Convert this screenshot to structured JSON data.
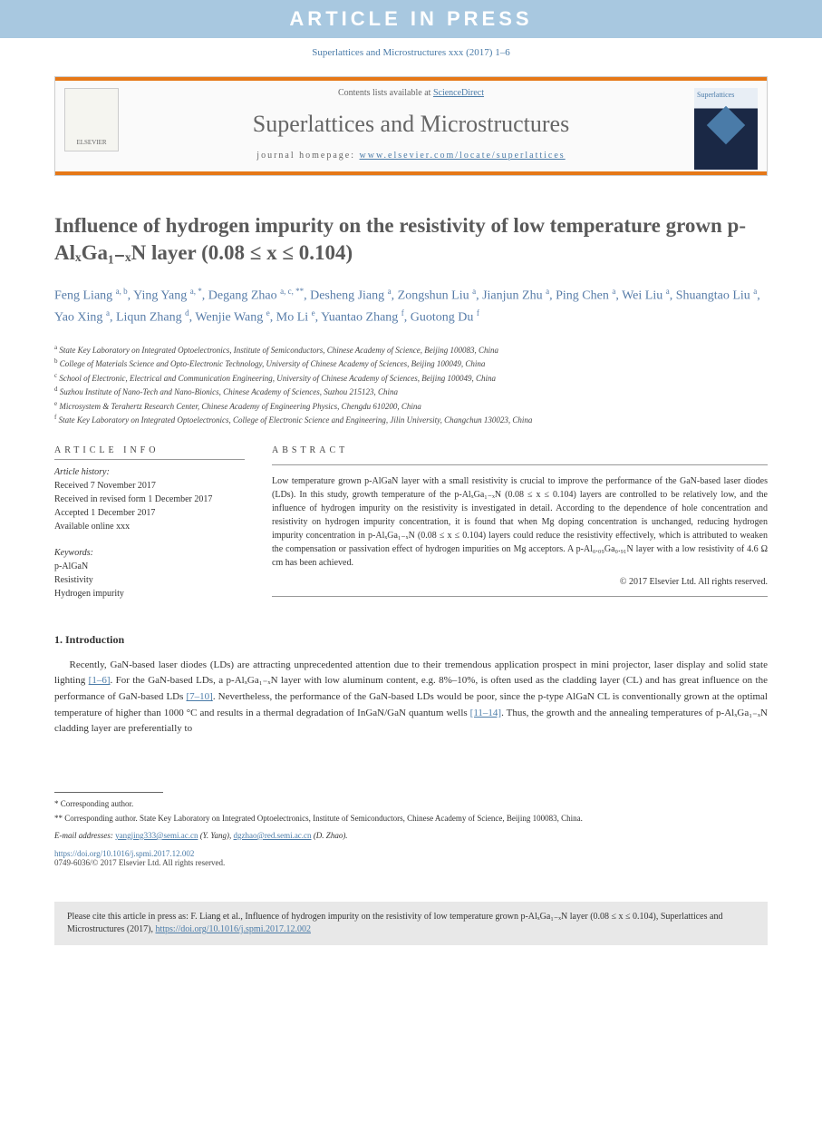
{
  "banner": "ARTICLE IN PRESS",
  "citation_header": "Superlattices and Microstructures xxx (2017) 1–6",
  "journal_box": {
    "contents_prefix": "Contents lists available at ",
    "contents_link": "ScienceDirect",
    "journal_name": "Superlattices and Microstructures",
    "homepage_prefix": "journal homepage: ",
    "homepage_url": "www.elsevier.com/locate/superlattices",
    "elsevier_label": "ELSEVIER",
    "cover_label": "Superlattices"
  },
  "title": "Influence of hydrogen impurity on the resistivity of low temperature grown p-AlₓGa₁₋ₓN layer (0.08 ≤ x ≤ 0.104)",
  "authors_html": "Feng Liang <sup>a, b</sup>, Ying Yang <sup>a, *</sup>, Degang Zhao <sup>a, c, **</sup>, Desheng Jiang <sup>a</sup>, Zongshun Liu <sup>a</sup>, Jianjun Zhu <sup>a</sup>, Ping Chen <sup>a</sup>, Wei Liu <sup>a</sup>, Shuangtao Liu <sup>a</sup>, Yao Xing <sup>a</sup>, Liqun Zhang <sup>d</sup>, Wenjie Wang <sup>e</sup>, Mo Li <sup>e</sup>, Yuantao Zhang <sup>f</sup>, Guotong Du <sup>f</sup>",
  "affiliations": [
    {
      "sup": "a",
      "text": "State Key Laboratory on Integrated Optoelectronics, Institute of Semiconductors, Chinese Academy of Science, Beijing 100083, China"
    },
    {
      "sup": "b",
      "text": "College of Materials Science and Opto-Electronic Technology, University of Chinese Academy of Sciences, Beijing 100049, China"
    },
    {
      "sup": "c",
      "text": "School of Electronic, Electrical and Communication Engineering, University of Chinese Academy of Sciences, Beijing 100049, China"
    },
    {
      "sup": "d",
      "text": "Suzhou Institute of Nano-Tech and Nano-Bionics, Chinese Academy of Sciences, Suzhou 215123, China"
    },
    {
      "sup": "e",
      "text": "Microsystem & Terahertz Research Center, Chinese Academy of Engineering Physics, Chengdu 610200, China"
    },
    {
      "sup": "f",
      "text": "State Key Laboratory on Integrated Optoelectronics, College of Electronic Science and Engineering, Jilin University, Changchun 130023, China"
    }
  ],
  "article_info": {
    "header": "ARTICLE INFO",
    "history_label": "Article history:",
    "history": [
      "Received 7 November 2017",
      "Received in revised form 1 December 2017",
      "Accepted 1 December 2017",
      "Available online xxx"
    ],
    "keywords_label": "Keywords:",
    "keywords": [
      "p-AlGaN",
      "Resistivity",
      "Hydrogen impurity"
    ]
  },
  "abstract": {
    "header": "ABSTRACT",
    "text": "Low temperature grown p-AlGaN layer with a small resistivity is crucial to improve the performance of the GaN-based laser diodes (LDs). In this study, growth temperature of the p-AlₓGa₁₋ₓN (0.08 ≤ x ≤ 0.104) layers are controlled to be relatively low, and the influence of hydrogen impurity on the resistivity is investigated in detail. According to the dependence of hole concentration and resistivity on hydrogen impurity concentration, it is found that when Mg doping concentration is unchanged, reducing hydrogen impurity concentration in p-AlₓGa₁₋ₓN (0.08 ≤ x ≤ 0.104) layers could reduce the resistivity effectively, which is attributed to weaken the compensation or passivation effect of hydrogen impurities on Mg acceptors. A p-Al₀.₀₉Ga₀.₉₁N layer with a low resistivity of 4.6 Ω cm has been achieved.",
    "copyright": "© 2017 Elsevier Ltd. All rights reserved."
  },
  "section1": {
    "heading": "1. Introduction",
    "paragraph": "Recently, GaN-based laser diodes (LDs) are attracting unprecedented attention due to their tremendous application prospect in mini projector, laser display and solid state lighting [1–6]. For the GaN-based LDs, a p-AlₓGa₁₋ₓN layer with low aluminum content, e.g. 8%–10%, is often used as the cladding layer (CL) and has great influence on the performance of GaN-based LDs [7–10]. Nevertheless, the performance of the GaN-based LDs would be poor, since the p-type AlGaN CL is conventionally grown at the optimal temperature of higher than 1000 °C and results in a thermal degradation of InGaN/GaN quantum wells [11–14]. Thus, the growth and the annealing temperatures of p-AlₓGa₁₋ₓN cladding layer are preferentially to"
  },
  "footer": {
    "corr1": "* Corresponding author.",
    "corr2": "** Corresponding author. State Key Laboratory on Integrated Optoelectronics, Institute of Semiconductors, Chinese Academy of Science, Beijing 100083, China.",
    "email_label": "E-mail addresses: ",
    "email1": "yangjing333@semi.ac.cn",
    "email1_name": " (Y. Yang), ",
    "email2": "dgzhao@red.semi.ac.cn",
    "email2_name": " (D. Zhao).",
    "doi": "https://doi.org/10.1016/j.spmi.2017.12.002",
    "issn": "0749-6036/© 2017 Elsevier Ltd. All rights reserved."
  },
  "cite_box": {
    "prefix": "Please cite this article in press as: F. Liang et al., Influence of hydrogen impurity on the resistivity of low temperature grown p-AlₓGa₁₋ₓN layer (0.08 ≤ x ≤ 0.104), Superlattices and Microstructures (2017), ",
    "link": "https://doi.org/10.1016/j.spmi.2017.12.002"
  },
  "colors": {
    "banner_bg": "#a8c8e0",
    "orange": "#e67817",
    "link_blue": "#4a7ba8",
    "author_blue": "#577ca8"
  }
}
